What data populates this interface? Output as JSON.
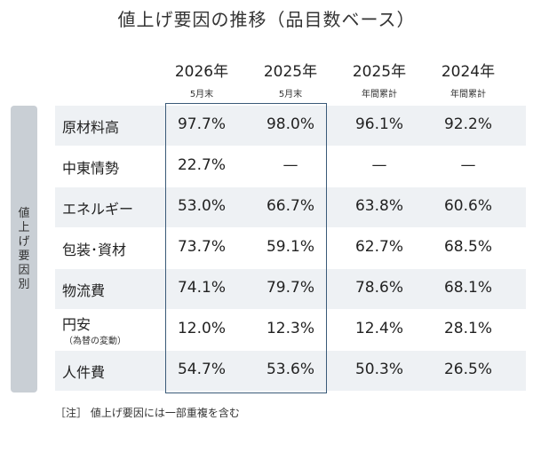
{
  "title": "値上げ要因の推移（品目数ベース）",
  "side_label": "値上げ要因別",
  "columns": [
    {
      "year": "2026年",
      "sub": "5月末"
    },
    {
      "year": "2025年",
      "sub": "5月末"
    },
    {
      "year": "2025年",
      "sub": "年間累計"
    },
    {
      "year": "2024年",
      "sub": "年間累計"
    }
  ],
  "footnote": "［注］ 値上げ要因には一部重複を含む",
  "chart_data": {
    "type": "table",
    "title": "値上げ要因の推移（品目数ベース）",
    "row_header": "値上げ要因別",
    "columns": [
      "2026年 5月末",
      "2025年 5月末",
      "2025年 年間累計",
      "2024年 年間累計"
    ],
    "rows": [
      {
        "label": "原材料高",
        "note": "",
        "values": [
          "97.7%",
          "98.0%",
          "96.1%",
          "92.2%"
        ]
      },
      {
        "label": "中東情勢",
        "note": "",
        "values": [
          "22.7%",
          "—",
          "—",
          "—"
        ]
      },
      {
        "label": "エネルギー",
        "note": "",
        "values": [
          "53.0%",
          "66.7%",
          "63.8%",
          "60.6%"
        ]
      },
      {
        "label": "包装･資材",
        "note": "",
        "values": [
          "73.7%",
          "59.1%",
          "62.7%",
          "68.5%"
        ]
      },
      {
        "label": "物流費",
        "note": "",
        "values": [
          "74.1%",
          "79.7%",
          "78.6%",
          "68.1%"
        ]
      },
      {
        "label": "円安",
        "note": "（為替の変動）",
        "values": [
          "12.0%",
          "12.3%",
          "12.4%",
          "28.1%"
        ]
      },
      {
        "label": "人件費",
        "note": "",
        "values": [
          "54.7%",
          "53.6%",
          "50.3%",
          "26.5%"
        ]
      }
    ],
    "highlight_color": "#3a5a78",
    "row_shade_color": "#eef1f4"
  }
}
